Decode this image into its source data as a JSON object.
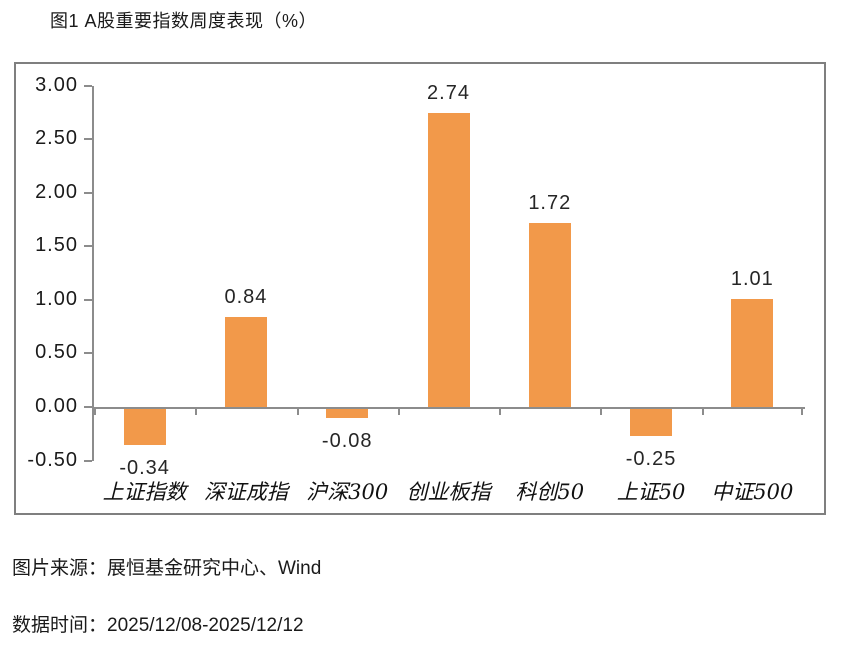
{
  "figure": {
    "title": "图1 A股重要指数周度表现（%）",
    "source": "图片来源：展恒基金研究中心、Wind",
    "data_period": "数据时间：2025/12/08-2025/12/12"
  },
  "colors": {
    "bar_fill": "#F2994A",
    "axis_line": "#8C8C8C",
    "chart_border": "#7F7F7F",
    "text": "#1A1A1A",
    "background": "#FFFFFF"
  },
  "chart_data": {
    "type": "bar",
    "title": "图1 A股重要指数周度表现（%）",
    "categories": [
      "上证指数",
      "深证成指",
      "沪深300",
      "创业板指",
      "科创50",
      "上证50",
      "中证500"
    ],
    "values": [
      -0.34,
      0.84,
      -0.08,
      2.74,
      1.72,
      -0.25,
      1.01
    ],
    "data_labels": [
      "-0.34",
      "0.84",
      "-0.08",
      "2.74",
      "1.72",
      "-0.25",
      "1.01"
    ],
    "y_tick_labels": [
      "3.00",
      "2.50",
      "2.00",
      "1.50",
      "1.00",
      "0.50",
      "0.00",
      "-0.50"
    ],
    "xlabel": "",
    "ylabel": "",
    "ylim": [
      -0.5,
      3.0
    ],
    "grid": false,
    "legend_position": "none",
    "bar_color": "#F2994A"
  }
}
